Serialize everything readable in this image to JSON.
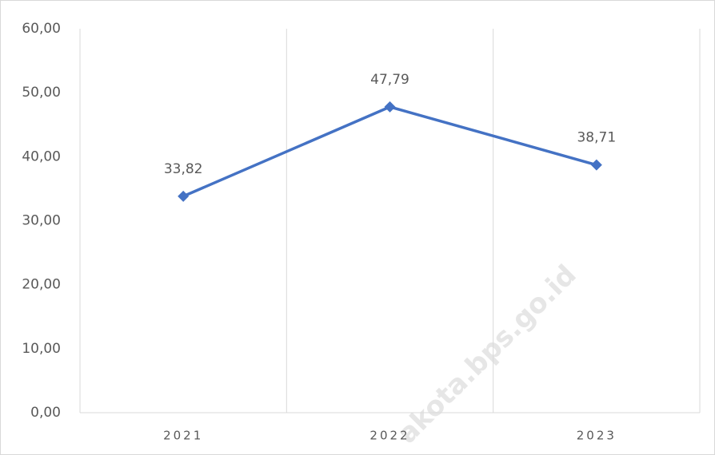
{
  "chart_data": {
    "type": "line",
    "categories": [
      "2021",
      "2022",
      "2023"
    ],
    "series": [
      {
        "name": null,
        "color": "#4472c4",
        "values": [
          33.82,
          47.79,
          38.71
        ],
        "value_labels": [
          "33,82",
          "47,79",
          "38,71"
        ]
      }
    ],
    "ylim": [
      0,
      60
    ],
    "yticks": [
      {
        "value": 0,
        "label": "0,00"
      },
      {
        "value": 10,
        "label": "10,00"
      },
      {
        "value": 20,
        "label": "20,00"
      },
      {
        "value": 30,
        "label": "30,00"
      },
      {
        "value": 40,
        "label": "40,00"
      },
      {
        "value": 50,
        "label": "50,00"
      },
      {
        "value": 60,
        "label": "60,00"
      }
    ],
    "grid": "x",
    "watermark": "akota.bps.go.id"
  }
}
